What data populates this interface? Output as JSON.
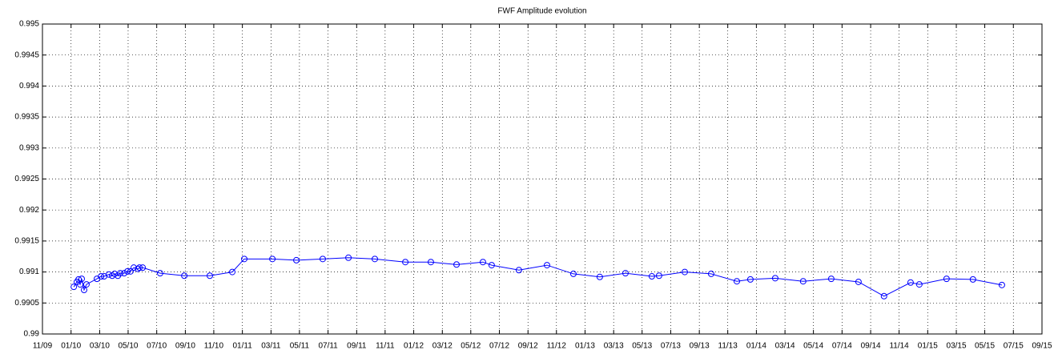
{
  "chart_data": {
    "type": "line",
    "title": "FWF Amplitude evolution",
    "x": [
      2010.016,
      2010.034,
      2010.044,
      2010.053,
      2010.062,
      2010.076,
      2010.09,
      2010.151,
      2010.175,
      2010.193,
      2010.221,
      2010.24,
      2010.254,
      2010.273,
      2010.287,
      2010.31,
      2010.329,
      2010.347,
      2010.366,
      2010.39,
      2010.399,
      2010.418,
      2010.52,
      2010.661,
      2010.81,
      2010.941,
      2011.011,
      2011.175,
      2011.315,
      2011.469,
      2011.619,
      2011.773,
      2011.951,
      2012.1,
      2012.25,
      2012.404,
      2012.455,
      2012.614,
      2012.778,
      2012.932,
      2013.086,
      2013.236,
      2013.39,
      2013.432,
      2013.582,
      2013.736,
      2013.886,
      2013.965,
      2014.11,
      2014.273,
      2014.437,
      2014.596,
      2014.745,
      2014.9,
      2014.951,
      2015.11,
      2015.264,
      2015.433
    ],
    "series": [
      {
        "color": "#0000ff",
        "values": [
          0.99076,
          0.99084,
          0.99088,
          0.9908,
          0.99089,
          0.99071,
          0.9908,
          0.99089,
          0.99093,
          0.99093,
          0.99096,
          0.99094,
          0.99097,
          0.99094,
          0.99098,
          0.99098,
          0.99101,
          0.99101,
          0.99107,
          0.99105,
          0.99107,
          0.99107,
          0.99098,
          0.99094,
          0.99094,
          0.991,
          0.99121,
          0.99121,
          0.99119,
          0.99121,
          0.99123,
          0.99121,
          0.99116,
          0.99116,
          0.99112,
          0.99116,
          0.99111,
          0.99103,
          0.99111,
          0.99097,
          0.99092,
          0.99098,
          0.99093,
          0.99094,
          0.991,
          0.99097,
          0.99085,
          0.99088,
          0.9909,
          0.99085,
          0.99089,
          0.99084,
          0.99061,
          0.99083,
          0.9908,
          0.99089,
          0.99088,
          0.99079
        ]
      }
    ],
    "xlim": [
      2009.833,
      2015.667
    ],
    "xticks": [
      {
        "value": 2009.833,
        "label": "11/09"
      },
      {
        "value": 2010.0,
        "label": "01/10"
      },
      {
        "value": 2010.167,
        "label": "03/10"
      },
      {
        "value": 2010.333,
        "label": "05/10"
      },
      {
        "value": 2010.5,
        "label": "07/10"
      },
      {
        "value": 2010.667,
        "label": "09/10"
      },
      {
        "value": 2010.833,
        "label": "11/10"
      },
      {
        "value": 2011.0,
        "label": "01/11"
      },
      {
        "value": 2011.167,
        "label": "03/11"
      },
      {
        "value": 2011.333,
        "label": "05/11"
      },
      {
        "value": 2011.5,
        "label": "07/11"
      },
      {
        "value": 2011.667,
        "label": "09/11"
      },
      {
        "value": 2011.833,
        "label": "11/11"
      },
      {
        "value": 2012.0,
        "label": "01/12"
      },
      {
        "value": 2012.167,
        "label": "03/12"
      },
      {
        "value": 2012.333,
        "label": "05/12"
      },
      {
        "value": 2012.5,
        "label": "07/12"
      },
      {
        "value": 2012.667,
        "label": "09/12"
      },
      {
        "value": 2012.833,
        "label": "11/12"
      },
      {
        "value": 2013.0,
        "label": "01/13"
      },
      {
        "value": 2013.167,
        "label": "03/13"
      },
      {
        "value": 2013.333,
        "label": "05/13"
      },
      {
        "value": 2013.5,
        "label": "07/13"
      },
      {
        "value": 2013.667,
        "label": "09/13"
      },
      {
        "value": 2013.833,
        "label": "11/13"
      },
      {
        "value": 2014.0,
        "label": "01/14"
      },
      {
        "value": 2014.167,
        "label": "03/14"
      },
      {
        "value": 2014.333,
        "label": "05/14"
      },
      {
        "value": 2014.5,
        "label": "07/14"
      },
      {
        "value": 2014.667,
        "label": "09/14"
      },
      {
        "value": 2014.833,
        "label": "11/14"
      },
      {
        "value": 2015.0,
        "label": "01/15"
      },
      {
        "value": 2015.167,
        "label": "03/15"
      },
      {
        "value": 2015.333,
        "label": "05/15"
      },
      {
        "value": 2015.5,
        "label": "07/15"
      },
      {
        "value": 2015.667,
        "label": "09/15"
      }
    ],
    "ylim": [
      0.99,
      0.995
    ],
    "yticks": [
      0.99,
      0.9905,
      0.991,
      0.9915,
      0.992,
      0.9925,
      0.993,
      0.9935,
      0.994,
      0.9945,
      0.995
    ],
    "grid": true,
    "marker": "circle"
  }
}
